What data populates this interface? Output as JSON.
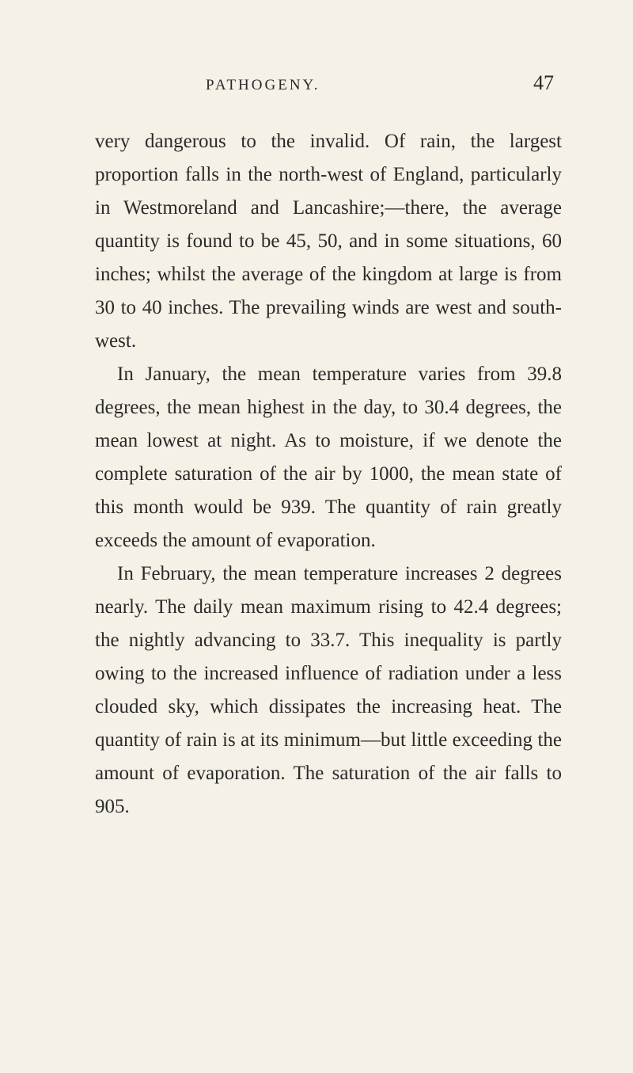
{
  "header": {
    "title": "PATHOGENY.",
    "page_number": "47"
  },
  "paragraphs": {
    "p1": "very dangerous to the invalid. Of rain, the largest proportion falls in the north-west of England, particularly in Westmoreland and Lancashire;—there, the average quantity is found to be 45, 50, and in some situations, 60 inches; whilst the average of the king­dom at large is from 30 to 40 inches. The prevailing winds are west and south-west.",
    "p2": "In January, the mean temperature varies from 39.8 degrees, the mean highest in the day, to 30.4 degrees, the mean lowest at night. As to moisture, if we denote the complete saturation of the air by 1000, the mean state of this month would be 939. The quantity of rain greatly exceeds the amount of evaporation.",
    "p3": "In February, the mean temperature in­creases 2 degrees nearly. The daily mean maximum rising to 42.4 degrees; the nightly advancing to 33.7. This inequality is partly owing to the increased influence of radia­tion under a less clouded sky, which dissi­pates the increasing heat. The quantity of rain is at its minimum—but little exceeding the amount of evaporation. The saturation of the air falls to 905."
  },
  "styling": {
    "background_color": "#f5f1e6",
    "text_color": "#2a2a2a",
    "font_family": "Georgia, Times New Roman, serif",
    "body_font_size": 25,
    "line_height": 1.68,
    "header_font_size": 19,
    "page_number_font_size": 26
  }
}
